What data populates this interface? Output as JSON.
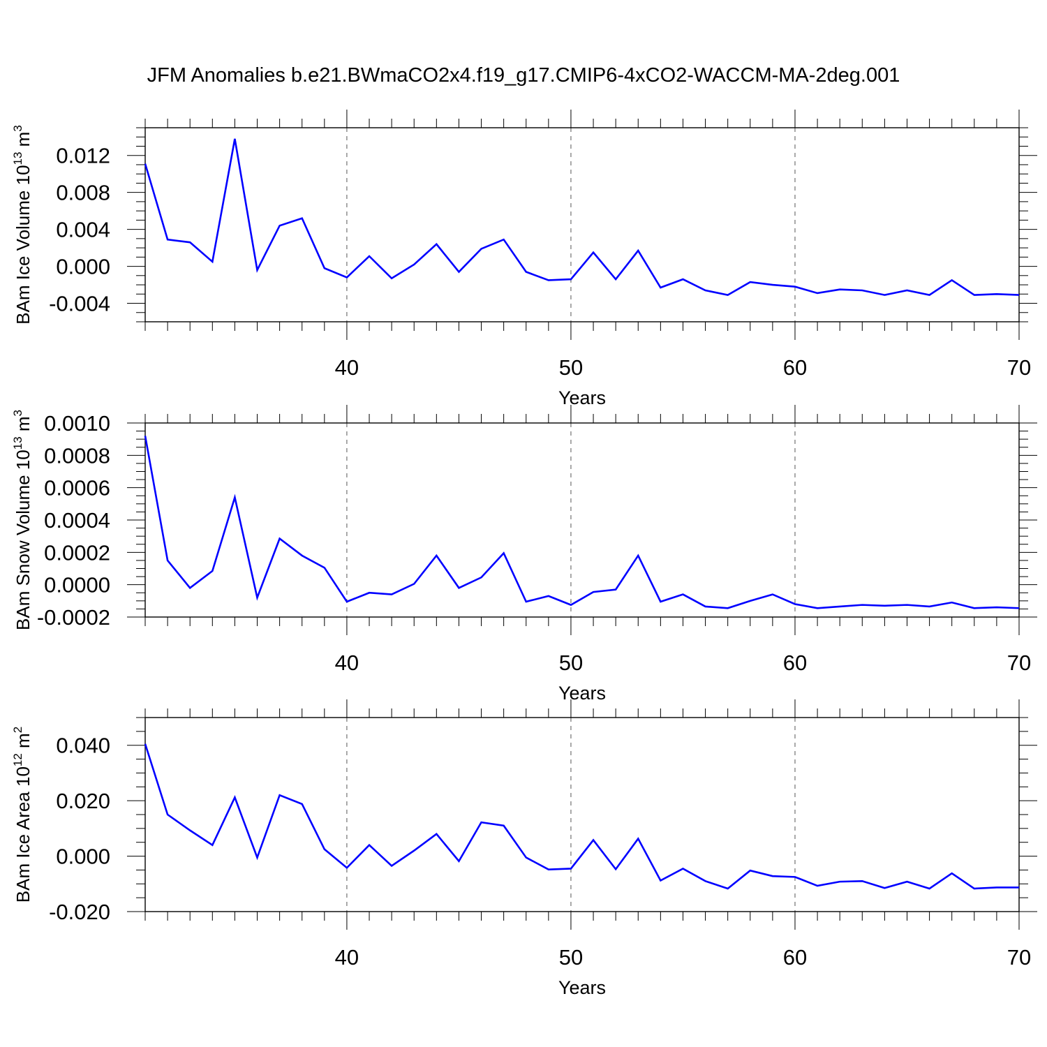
{
  "title": "JFM Anomalies b.e21.BWmaCO2x4.f19_g17.CMIP6-4xCO2-WACCM-MA-2deg.001",
  "chart_data": [
    {
      "type": "line",
      "title": "JFM Anomalies b.e21.BWmaCO2x4.f19_g17.CMIP6-4xCO2-WACCM-MA-2deg.001",
      "xlabel": "Years",
      "ylabel_main": "BAm Ice Volume 10",
      "ylabel_sup": "13",
      "ylabel_unit": " m",
      "ylabel_unit_sup": "3",
      "xlim": [
        31,
        70
      ],
      "ylim": [
        -0.006,
        0.015
      ],
      "xticks": [
        40,
        50,
        60,
        70
      ],
      "xtick_labels": [
        "40",
        "50",
        "60",
        "70"
      ],
      "yticks": [
        -0.004,
        0.0,
        0.004,
        0.008,
        0.012
      ],
      "ytick_labels": [
        "-0.004",
        "0.000",
        "0.004",
        "0.008",
        "0.012"
      ],
      "line_color": "#0000ff",
      "x": [
        31,
        32,
        33,
        34,
        35,
        36,
        37,
        38,
        39,
        40,
        41,
        42,
        43,
        44,
        45,
        46,
        47,
        48,
        49,
        50,
        51,
        52,
        53,
        54,
        55,
        56,
        57,
        58,
        59,
        60,
        61,
        62,
        63,
        64,
        65,
        66,
        67,
        68,
        69,
        70
      ],
      "series": [
        {
          "name": "BAm Ice Volume",
          "values": [
            0.0111,
            0.0029,
            0.0026,
            0.0005,
            0.0138,
            -0.0004,
            0.0044,
            0.0052,
            -0.0002,
            -0.0012,
            0.0011,
            -0.0013,
            0.0002,
            0.0024,
            -0.0006,
            0.0019,
            0.0029,
            -0.0006,
            -0.0015,
            -0.0014,
            0.0015,
            -0.0014,
            0.0017,
            -0.0023,
            -0.0014,
            -0.0026,
            -0.0031,
            -0.0017,
            -0.002,
            -0.0022,
            -0.0029,
            -0.0025,
            -0.0026,
            -0.0031,
            -0.0026,
            -0.0031,
            -0.0015,
            -0.0031,
            -0.003,
            -0.0031
          ]
        }
      ]
    },
    {
      "type": "line",
      "xlabel": "Years",
      "ylabel_main": "BAm Snow Volume 10",
      "ylabel_sup": "13",
      "ylabel_unit": " m",
      "ylabel_unit_sup": "3",
      "xlim": [
        31,
        70
      ],
      "ylim": [
        -0.0002,
        0.001
      ],
      "xticks": [
        40,
        50,
        60,
        70
      ],
      "xtick_labels": [
        "40",
        "50",
        "60",
        "70"
      ],
      "yticks": [
        -0.0002,
        0.0,
        0.0002,
        0.0004,
        0.0006,
        0.0008,
        0.001
      ],
      "ytick_labels": [
        "-0.0002",
        "0.0000",
        "0.0002",
        "0.0004",
        "0.0006",
        "0.0008",
        "0.0010"
      ],
      "line_color": "#0000ff",
      "x": [
        31,
        32,
        33,
        34,
        35,
        36,
        37,
        38,
        39,
        40,
        41,
        42,
        43,
        44,
        45,
        46,
        47,
        48,
        49,
        50,
        51,
        52,
        53,
        54,
        55,
        56,
        57,
        58,
        59,
        60,
        61,
        62,
        63,
        64,
        65,
        66,
        67,
        68,
        69,
        70
      ],
      "series": [
        {
          "name": "BAm Snow Volume",
          "values": [
            0.00092,
            0.00015,
            -2e-05,
            8.5e-05,
            0.00054,
            -8e-05,
            0.000285,
            0.00018,
            0.000105,
            -0.000105,
            -5e-05,
            -6e-05,
            5e-06,
            0.00018,
            -2e-05,
            4.5e-05,
            0.000195,
            -0.000105,
            -7e-05,
            -0.000125,
            -4.5e-05,
            -3e-05,
            0.00018,
            -0.000105,
            -6e-05,
            -0.000135,
            -0.000145,
            -0.0001,
            -6e-05,
            -0.00012,
            -0.000145,
            -0.000135,
            -0.000125,
            -0.00013,
            -0.000125,
            -0.000135,
            -0.00011,
            -0.000145,
            -0.00014,
            -0.000145
          ]
        }
      ]
    },
    {
      "type": "line",
      "xlabel": "Years",
      "ylabel_main": "BAm Ice Area 10",
      "ylabel_sup": "12",
      "ylabel_unit": " m",
      "ylabel_unit_sup": "2",
      "xlim": [
        31,
        70
      ],
      "ylim": [
        -0.02,
        0.05
      ],
      "xticks": [
        40,
        50,
        60,
        70
      ],
      "xtick_labels": [
        "40",
        "50",
        "60",
        "70"
      ],
      "yticks": [
        -0.02,
        0.0,
        0.02,
        0.04
      ],
      "ytick_labels": [
        "-0.020",
        "0.000",
        "0.020",
        "0.040"
      ],
      "line_color": "#0000ff",
      "x": [
        31,
        32,
        33,
        34,
        35,
        36,
        37,
        38,
        39,
        40,
        41,
        42,
        43,
        44,
        45,
        46,
        47,
        48,
        49,
        50,
        51,
        52,
        53,
        54,
        55,
        56,
        57,
        58,
        59,
        60,
        61,
        62,
        63,
        64,
        65,
        66,
        67,
        68,
        69,
        70
      ],
      "series": [
        {
          "name": "BAm Ice Area",
          "values": [
            0.0405,
            0.015,
            0.0093,
            0.004,
            0.0212,
            -0.0005,
            0.022,
            0.0188,
            0.0025,
            -0.0042,
            0.004,
            -0.0035,
            0.002,
            0.008,
            -0.0018,
            0.0122,
            0.011,
            -0.0005,
            -0.0048,
            -0.0045,
            0.0058,
            -0.0047,
            0.0063,
            -0.0088,
            -0.0045,
            -0.009,
            -0.0117,
            -0.0052,
            -0.0072,
            -0.0075,
            -0.0107,
            -0.0092,
            -0.009,
            -0.0115,
            -0.0092,
            -0.0117,
            -0.0062,
            -0.0117,
            -0.0113,
            -0.0113
          ]
        }
      ]
    }
  ]
}
